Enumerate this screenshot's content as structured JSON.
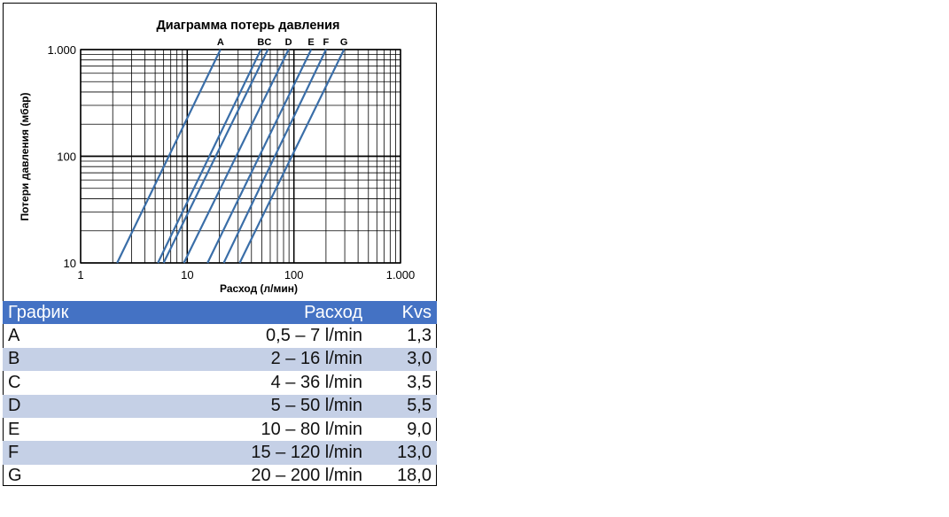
{
  "chart_data": {
    "type": "line",
    "title": "Диаграмма потерь давления",
    "xlabel": "Расход (л/мин)",
    "ylabel": "Потери давления (мбар)",
    "x_scale": "log",
    "y_scale": "log",
    "xlim": [
      1,
      1000
    ],
    "ylim": [
      10,
      1000
    ],
    "x_ticks": [
      "1",
      "10",
      "100",
      "1.000"
    ],
    "y_ticks": [
      "10",
      "100",
      "1.000"
    ],
    "grid": true,
    "line_color": "#3a6ea8",
    "series": [
      {
        "name": "A",
        "x": [
          2.2,
          20.5
        ],
        "y": [
          10,
          1000
        ]
      },
      {
        "name": "B",
        "x": [
          5.3,
          49
        ],
        "y": [
          10,
          1000
        ]
      },
      {
        "name": "C",
        "x": [
          6.0,
          57
        ],
        "y": [
          10,
          1000
        ]
      },
      {
        "name": "D",
        "x": [
          9.3,
          89
        ],
        "y": [
          10,
          1000
        ]
      },
      {
        "name": "E",
        "x": [
          15.5,
          145
        ],
        "y": [
          10,
          1000
        ]
      },
      {
        "name": "F",
        "x": [
          22,
          200
        ],
        "y": [
          10,
          1000
        ]
      },
      {
        "name": "G",
        "x": [
          31,
          295
        ],
        "y": [
          10,
          1000
        ]
      }
    ]
  },
  "table": {
    "headers": [
      "График",
      "Расход",
      "Kvs"
    ],
    "rows": [
      [
        "A",
        "0,5 – 7 l/min",
        "1,3"
      ],
      [
        "B",
        "2 – 16 l/min",
        "3,0"
      ],
      [
        "C",
        "4 – 36 l/min",
        "3,5"
      ],
      [
        "D",
        "5 – 50 l/min",
        "5,5"
      ],
      [
        "E",
        "10 – 80 l/min",
        "9,0"
      ],
      [
        "F",
        "15 – 120 l/min",
        "13,0"
      ],
      [
        "G",
        "20 – 200 l/min",
        "18,0"
      ]
    ],
    "header_color": "#4472c4",
    "alt_row_color": "#c5d0e6"
  }
}
